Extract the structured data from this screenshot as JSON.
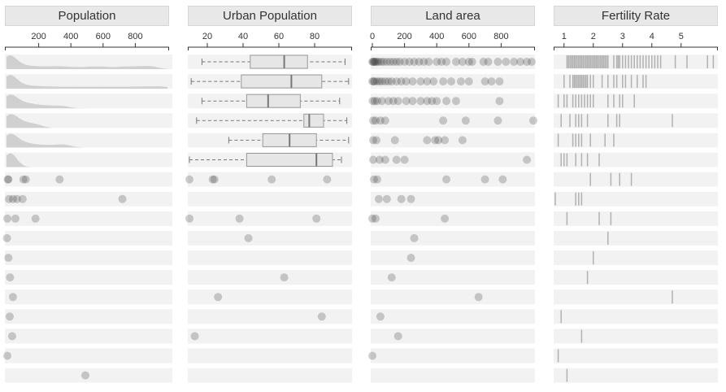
{
  "chart_data": [
    {
      "type": "table",
      "title": "Population",
      "xlim": [
        0,
        1000
      ],
      "ticks": [
        200,
        400,
        600,
        800
      ],
      "kind": "density-then-dots",
      "rows": [
        {
          "kind": "density",
          "values": [
            5,
            8,
            10,
            12,
            15,
            20,
            25,
            40,
            60,
            90,
            130,
            180,
            240,
            300,
            350,
            420,
            500,
            560,
            620,
            700,
            760,
            820,
            870,
            920
          ]
        },
        {
          "kind": "density",
          "values": [
            4,
            6,
            9,
            12,
            16,
            20,
            28,
            40,
            55,
            80,
            120,
            170,
            230,
            300,
            380,
            460,
            540,
            620,
            700,
            780,
            850,
            920,
            980
          ]
        },
        {
          "kind": "density",
          "values": [
            3,
            6,
            10,
            14,
            18,
            25,
            35,
            50,
            70,
            95,
            120,
            150,
            190,
            240,
            300,
            360
          ]
        },
        {
          "kind": "density",
          "values": [
            4,
            7,
            10,
            14,
            18,
            22,
            30,
            40,
            55,
            70,
            90,
            110,
            140,
            170,
            200
          ]
        },
        {
          "kind": "density",
          "values": [
            3,
            6,
            9,
            12,
            16,
            20,
            28,
            38,
            50,
            65,
            85,
            110,
            140,
            180,
            230,
            290,
            340,
            380
          ]
        },
        {
          "kind": "density",
          "values": [
            15,
            18,
            22,
            26,
            30,
            35
          ]
        },
        {
          "kind": "dots",
          "values": [
            8,
            12,
            105,
            120,
            330
          ]
        },
        {
          "kind": "dots",
          "values": [
            15,
            40,
            65,
            100,
            720
          ]
        },
        {
          "kind": "dots",
          "values": [
            5,
            55,
            180
          ]
        },
        {
          "kind": "dots",
          "values": [
            3
          ]
        },
        {
          "kind": "dots",
          "values": [
            12
          ]
        },
        {
          "kind": "dots",
          "values": [
            22
          ]
        },
        {
          "kind": "dots",
          "values": [
            40
          ]
        },
        {
          "kind": "dots",
          "values": [
            20
          ]
        },
        {
          "kind": "dots",
          "values": [
            35
          ]
        },
        {
          "kind": "dots",
          "values": [
            5
          ]
        },
        {
          "kind": "dots",
          "values": [
            490
          ]
        }
      ]
    },
    {
      "type": "table",
      "title": "Urban Population",
      "xlim": [
        10,
        100
      ],
      "ticks": [
        20,
        40,
        60,
        80
      ],
      "rows": [
        {
          "kind": "box",
          "whisker": [
            17,
            97
          ],
          "q": [
            44,
            63,
            76
          ]
        },
        {
          "kind": "box",
          "whisker": [
            11,
            99
          ],
          "q": [
            39,
            67,
            84
          ]
        },
        {
          "kind": "box",
          "whisker": [
            17,
            94
          ],
          "q": [
            42,
            54,
            72
          ]
        },
        {
          "kind": "box",
          "whisker": [
            14,
            98
          ],
          "q": [
            74,
            77,
            85
          ]
        },
        {
          "kind": "box",
          "whisker": [
            32,
            99
          ],
          "q": [
            51,
            66,
            81
          ]
        },
        {
          "kind": "box",
          "whisker": [
            10,
            95
          ],
          "q": [
            42,
            81,
            90
          ]
        },
        {
          "kind": "dots",
          "values": [
            10,
            23,
            24,
            56,
            87
          ]
        },
        {
          "kind": "dots",
          "values": []
        },
        {
          "kind": "dots",
          "values": [
            10,
            38,
            81
          ]
        },
        {
          "kind": "dots",
          "values": [
            43
          ]
        },
        {
          "kind": "dots",
          "values": []
        },
        {
          "kind": "dots",
          "values": [
            63
          ]
        },
        {
          "kind": "dots",
          "values": [
            26
          ]
        },
        {
          "kind": "dots",
          "values": [
            84
          ]
        },
        {
          "kind": "dots",
          "values": [
            13
          ]
        },
        {
          "kind": "dots",
          "values": []
        },
        {
          "kind": "dots",
          "values": []
        }
      ]
    },
    {
      "type": "table",
      "title": "Land area",
      "xlim": [
        0,
        1000
      ],
      "ticks": [
        0,
        200,
        400,
        600,
        800
      ],
      "rows": [
        {
          "kind": "dots",
          "values": [
            0,
            5,
            10,
            15,
            20,
            30,
            40,
            55,
            70,
            90,
            110,
            130,
            150,
            170,
            200,
            230,
            260,
            290,
            320,
            350,
            400,
            430,
            460,
            520,
            560,
            600,
            620,
            690,
            720,
            780,
            830,
            880,
            920,
            960,
            990
          ]
        },
        {
          "kind": "dots",
          "values": [
            0,
            8,
            15,
            30,
            45,
            60,
            80,
            100,
            120,
            150,
            180,
            210,
            250,
            300,
            340,
            380,
            440,
            490,
            550,
            600,
            700,
            740,
            790
          ]
        },
        {
          "kind": "dots",
          "values": [
            2,
            15,
            30,
            60,
            100,
            130,
            160,
            210,
            250,
            300,
            340,
            370,
            400,
            460,
            520,
            790
          ]
        },
        {
          "kind": "dots",
          "values": [
            5,
            20,
            50,
            80,
            440,
            580,
            780,
            1000
          ]
        },
        {
          "kind": "dots",
          "values": [
            5,
            25,
            140,
            340,
            390,
            410,
            450,
            560
          ]
        },
        {
          "kind": "dots",
          "values": [
            5,
            45,
            80,
            150,
            200,
            960
          ]
        },
        {
          "kind": "dots",
          "values": [
            10,
            30,
            460,
            700,
            810
          ]
        },
        {
          "kind": "dots",
          "values": [
            40,
            90,
            180,
            240
          ]
        },
        {
          "kind": "dots",
          "values": [
            0,
            20,
            450
          ]
        },
        {
          "kind": "dots",
          "values": [
            260
          ]
        },
        {
          "kind": "dots",
          "values": [
            240
          ]
        },
        {
          "kind": "dots",
          "values": [
            120
          ]
        },
        {
          "kind": "dots",
          "values": [
            660
          ]
        },
        {
          "kind": "dots",
          "values": [
            50
          ]
        },
        {
          "kind": "dots",
          "values": [
            160
          ]
        },
        {
          "kind": "dots",
          "values": [
            0
          ]
        },
        {
          "kind": "dots",
          "values": []
        }
      ]
    },
    {
      "type": "table",
      "title": "Fertility Rate",
      "xlim": [
        0.7,
        6.2
      ],
      "ticks": [
        1,
        2,
        3,
        4,
        5
      ],
      "rows": [
        {
          "kind": "ticks",
          "values": [
            1.1,
            1.15,
            1.2,
            1.25,
            1.3,
            1.35,
            1.4,
            1.45,
            1.5,
            1.55,
            1.6,
            1.65,
            1.7,
            1.75,
            1.8,
            1.85,
            1.9,
            1.95,
            2.0,
            2.05,
            2.1,
            2.15,
            2.2,
            2.25,
            2.3,
            2.35,
            2.4,
            2.45,
            2.5,
            2.7,
            2.8,
            2.85,
            2.9,
            3.0,
            3.1,
            3.2,
            3.3,
            3.4,
            3.5,
            3.6,
            3.7,
            3.8,
            3.9,
            4.0,
            4.1,
            4.2,
            4.3,
            4.8,
            5.2,
            5.9,
            6.1
          ]
        },
        {
          "kind": "ticks",
          "values": [
            1.0,
            1.2,
            1.3,
            1.35,
            1.4,
            1.45,
            1.5,
            1.55,
            1.6,
            1.65,
            1.7,
            1.75,
            1.8,
            1.9,
            2.0,
            2.3,
            2.5,
            2.7,
            2.8,
            3.0,
            3.1,
            3.3,
            3.5,
            3.7,
            3.8
          ]
        },
        {
          "kind": "ticks",
          "values": [
            0.8,
            1.0,
            1.1,
            1.3,
            1.4,
            1.5,
            1.6,
            1.7,
            1.8,
            1.9,
            2.0,
            2.5,
            2.7,
            2.9,
            3.0,
            3.4
          ]
        },
        {
          "kind": "ticks",
          "values": [
            0.9,
            1.2,
            1.4,
            1.5,
            1.6,
            1.8,
            2.5,
            2.8,
            2.9,
            4.7
          ]
        },
        {
          "kind": "ticks",
          "values": [
            0.8,
            1.3,
            1.4,
            1.5,
            1.6,
            1.9,
            2.4,
            2.7
          ]
        },
        {
          "kind": "ticks",
          "values": [
            0.9,
            1.0,
            1.1,
            1.4,
            1.6,
            1.8,
            2.2
          ]
        },
        {
          "kind": "ticks",
          "values": [
            1.9,
            2.6,
            2.9,
            3.3
          ]
        },
        {
          "kind": "ticks",
          "values": [
            0.7,
            1.4,
            1.5,
            1.6
          ]
        },
        {
          "kind": "ticks",
          "values": [
            1.1,
            2.2,
            2.6
          ]
        },
        {
          "kind": "ticks",
          "values": [
            2.5
          ]
        },
        {
          "kind": "ticks",
          "values": [
            2.0
          ]
        },
        {
          "kind": "ticks",
          "values": [
            1.8
          ]
        },
        {
          "kind": "ticks",
          "values": [
            4.7
          ]
        },
        {
          "kind": "ticks",
          "values": [
            0.9
          ]
        },
        {
          "kind": "ticks",
          "values": [
            1.6
          ]
        },
        {
          "kind": "ticks",
          "values": [
            0.8
          ]
        },
        {
          "kind": "ticks",
          "values": [
            1.1
          ]
        }
      ]
    }
  ]
}
